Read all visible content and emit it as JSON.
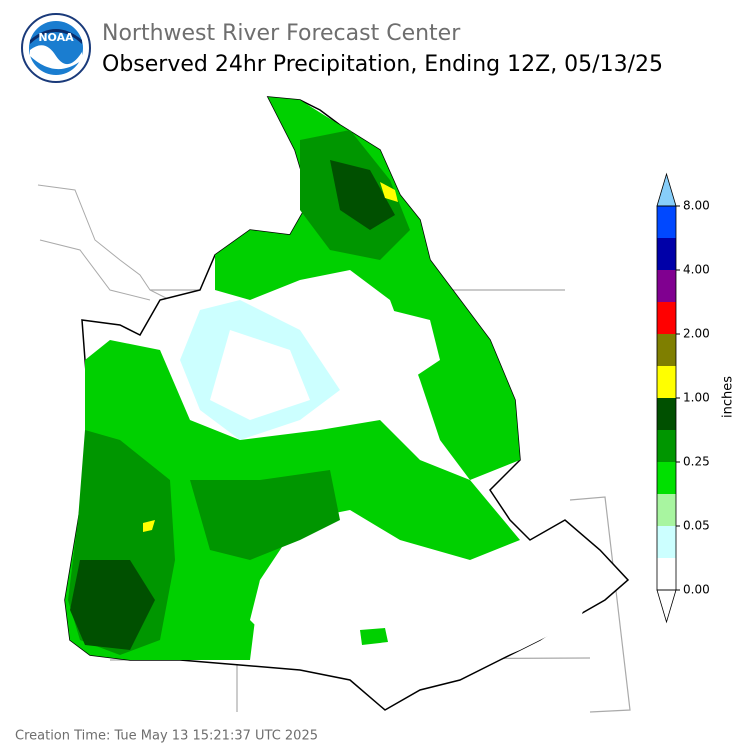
{
  "header": {
    "logo_text": "NOAA",
    "title": "Northwest River Forecast Center",
    "subtitle": "Observed 24hr Precipitation, Ending 12Z, 05/13/25"
  },
  "colorbar": {
    "label": "inches",
    "colors": [
      "#ffffff",
      "#ccffff",
      "#a8f5a0",
      "#00e000",
      "#009600",
      "#005000",
      "#ffff00",
      "#7f7f00",
      "#ff0000",
      "#800090",
      "#0000a8",
      "#0048ff"
    ],
    "over_color": "#87cefa",
    "under_color": "#ffffff",
    "ticks": [
      {
        "value": 0,
        "label": "0.00"
      },
      {
        "value": 0.05,
        "label": "0.05"
      },
      {
        "value": 0.25,
        "label": "0.25"
      },
      {
        "value": 1,
        "label": "1.00"
      },
      {
        "value": 2,
        "label": "2.00"
      },
      {
        "value": 4,
        "label": "4.00"
      },
      {
        "value": 8,
        "label": "8.00"
      }
    ]
  },
  "footer": {
    "creation_time": "Creation Time: Tue May 13 15:21:37 UTC 2025"
  }
}
